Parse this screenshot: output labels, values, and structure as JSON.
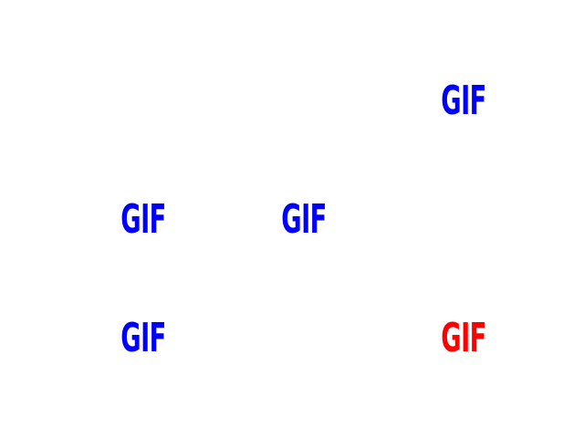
{
  "stimuli": [
    {
      "text": "GIF",
      "color": "#0000ff"
    },
    {
      "text": "GIF",
      "color": "#0000ff"
    },
    {
      "text": "GIF",
      "color": "#0000ff"
    },
    {
      "text": "GIF",
      "color": "#0000ff"
    },
    {
      "text": "GIF",
      "color": "#ff0000"
    }
  ]
}
